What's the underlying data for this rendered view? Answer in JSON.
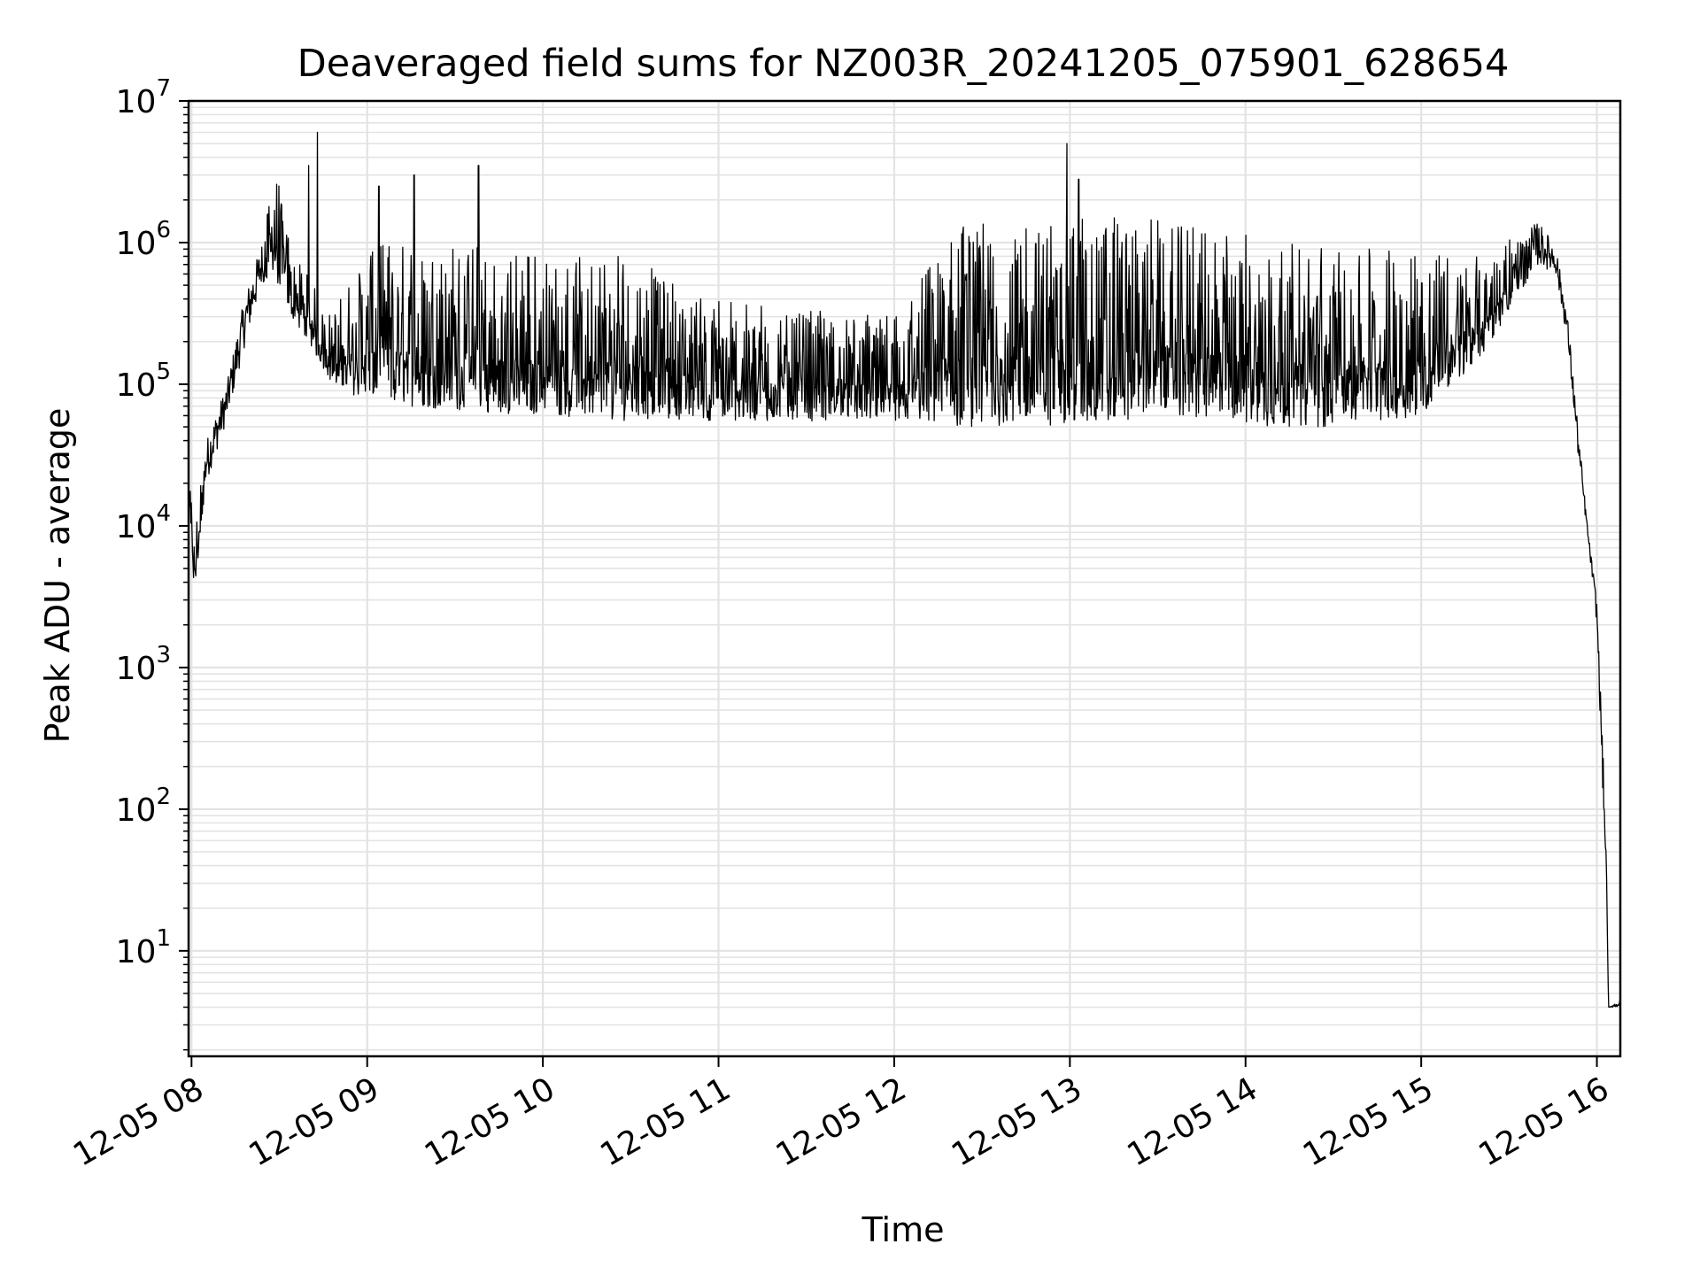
{
  "chart_data": {
    "type": "line",
    "title": "Deaveraged field sums for NZ003R_20241205_075901_628654",
    "xlabel": "Time",
    "ylabel": "Peak ADU - average",
    "y_scale": "log",
    "ylim": [
      1.8,
      10000000
    ],
    "xlim": [
      "2024-12-05 07:59",
      "2024-12-05 16:08"
    ],
    "grid": true,
    "x_ticks": [
      {
        "t": "2024-12-05 08:00",
        "label": "12-05 08"
      },
      {
        "t": "2024-12-05 09:00",
        "label": "12-05 09"
      },
      {
        "t": "2024-12-05 10:00",
        "label": "12-05 10"
      },
      {
        "t": "2024-12-05 11:00",
        "label": "12-05 11"
      },
      {
        "t": "2024-12-05 12:00",
        "label": "12-05 12"
      },
      {
        "t": "2024-12-05 13:00",
        "label": "12-05 13"
      },
      {
        "t": "2024-12-05 14:00",
        "label": "12-05 14"
      },
      {
        "t": "2024-12-05 15:00",
        "label": "12-05 15"
      },
      {
        "t": "2024-12-05 16:00",
        "label": "12-05 16"
      }
    ],
    "y_ticks": [
      {
        "value": 10,
        "base": "10",
        "exp": "1"
      },
      {
        "value": 100,
        "base": "10",
        "exp": "2"
      },
      {
        "value": 1000,
        "base": "10",
        "exp": "3"
      },
      {
        "value": 10000,
        "base": "10",
        "exp": "4"
      },
      {
        "value": 100000,
        "base": "10",
        "exp": "5"
      },
      {
        "value": 1000000,
        "base": "10",
        "exp": "6"
      },
      {
        "value": 10000000,
        "base": "10",
        "exp": "7"
      }
    ],
    "series": [
      {
        "color": "#000000",
        "envelope": [
          {
            "t": "2024-12-05 07:59",
            "low": 12000,
            "high": 25000
          },
          {
            "t": "2024-12-05 08:01",
            "low": 3300,
            "high": 9000
          },
          {
            "t": "2024-12-05 08:05",
            "low": 20000,
            "high": 40000
          },
          {
            "t": "2024-12-05 08:12",
            "low": 55000,
            "high": 100000
          },
          {
            "t": "2024-12-05 08:18",
            "low": 180000,
            "high": 400000
          },
          {
            "t": "2024-12-05 08:24",
            "low": 500000,
            "high": 1000000
          },
          {
            "t": "2024-12-05 08:28",
            "low": 600000,
            "high": 4000000
          },
          {
            "t": "2024-12-05 08:34",
            "low": 300000,
            "high": 900000
          },
          {
            "t": "2024-12-05 08:40",
            "low": 200000,
            "high": 600000
          },
          {
            "t": "2024-12-05 08:48",
            "low": 100000,
            "high": 300000
          },
          {
            "t": "2024-12-05 09:00",
            "low": 75000,
            "high": 1000000
          },
          {
            "t": "2024-12-05 09:30",
            "low": 65000,
            "high": 1000000
          },
          {
            "t": "2024-12-05 10:00",
            "low": 60000,
            "high": 800000
          },
          {
            "t": "2024-12-05 10:30",
            "low": 55000,
            "high": 800000
          },
          {
            "t": "2024-12-05 11:00",
            "low": 55000,
            "high": 400000
          },
          {
            "t": "2024-12-05 11:30",
            "low": 55000,
            "high": 350000
          },
          {
            "t": "2024-12-05 12:00",
            "low": 55000,
            "high": 300000
          },
          {
            "t": "2024-12-05 12:20",
            "low": 50000,
            "high": 1300000
          },
          {
            "t": "2024-12-05 13:00",
            "low": 50000,
            "high": 1500000
          },
          {
            "t": "2024-12-05 13:30",
            "low": 60000,
            "high": 1500000
          },
          {
            "t": "2024-12-05 14:00",
            "low": 50000,
            "high": 1200000
          },
          {
            "t": "2024-12-05 14:30",
            "low": 50000,
            "high": 900000
          },
          {
            "t": "2024-12-05 15:00",
            "low": 60000,
            "high": 900000
          },
          {
            "t": "2024-12-05 15:20",
            "low": 150000,
            "high": 800000
          },
          {
            "t": "2024-12-05 15:40",
            "low": 700000,
            "high": 1400000
          },
          {
            "t": "2024-12-05 15:46",
            "low": 600000,
            "high": 950000
          },
          {
            "t": "2024-12-05 15:50",
            "low": 200000,
            "high": 300000
          },
          {
            "t": "2024-12-05 15:54",
            "low": 25000,
            "high": 40000
          },
          {
            "t": "2024-12-05 15:57",
            "low": 8000,
            "high": 9000
          },
          {
            "t": "2024-12-05 16:00",
            "low": 2000,
            "high": 3000
          },
          {
            "t": "2024-12-05 16:03",
            "low": 35,
            "high": 85
          },
          {
            "t": "2024-12-05 16:04",
            "low": 4,
            "high": 4
          },
          {
            "t": "2024-12-05 16:08",
            "low": 4,
            "high": 4.5
          }
        ],
        "spikes": [
          {
            "t": "2024-12-05 08:43",
            "value": 6000000
          },
          {
            "t": "2024-12-05 08:40",
            "value": 3500000
          },
          {
            "t": "2024-12-05 09:16",
            "value": 3000000
          },
          {
            "t": "2024-12-05 09:38",
            "value": 3500000
          },
          {
            "t": "2024-12-05 09:04",
            "value": 2500000
          },
          {
            "t": "2024-12-05 12:59",
            "value": 5000000
          },
          {
            "t": "2024-12-05 13:03",
            "value": 2800000
          }
        ]
      }
    ]
  }
}
